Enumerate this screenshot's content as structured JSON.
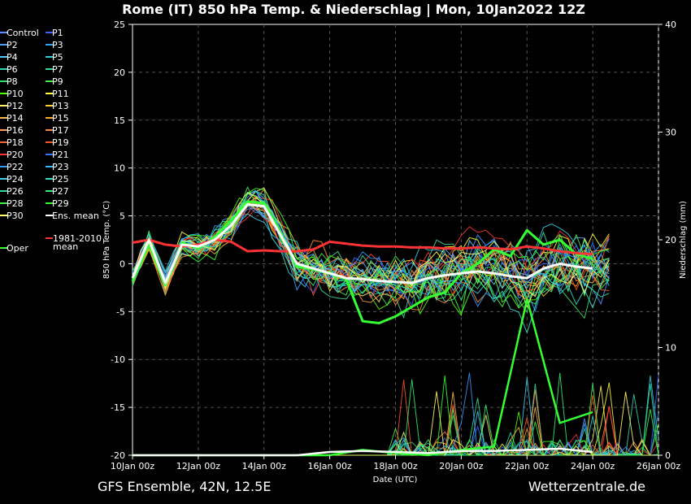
{
  "chart_data": {
    "type": "line",
    "title": "Rome  (IT)  850 hPa Temp. & Niederschlag | Mon, 10Jan2022 12Z",
    "xlabel": "Date (UTC)",
    "ylabel": "850 hPa Temp. (°C)",
    "y2label": "Niederschlag (mm)",
    "x_ticks": [
      "10Jan 00z",
      "12Jan 00z",
      "14Jan 00z",
      "16Jan 00z",
      "18Jan 00z",
      "20Jan 00z",
      "22Jan 00z",
      "24Jan 00z",
      "26Jan 00z"
    ],
    "x_range_hours": [
      0,
      384
    ],
    "ylim": [
      -20,
      25
    ],
    "y_ticks": [
      25,
      20,
      15,
      10,
      5,
      0,
      -5,
      -10,
      -15,
      -20
    ],
    "y2lim": [
      0,
      40
    ],
    "y2_ticks": [
      40,
      30,
      20,
      10,
      0
    ],
    "grid": true,
    "legend_position": "left",
    "legend_entries": [
      {
        "name": "Control",
        "color": "#4a90ff"
      },
      {
        "name": "P1",
        "color": "#3366ff"
      },
      {
        "name": "P2",
        "color": "#4aa0ff"
      },
      {
        "name": "P3",
        "color": "#33a0ff"
      },
      {
        "name": "P4",
        "color": "#55c8ff"
      },
      {
        "name": "P5",
        "color": "#33ccdd"
      },
      {
        "name": "P6",
        "color": "#33d4b0"
      },
      {
        "name": "P7",
        "color": "#33dd99"
      },
      {
        "name": "P8",
        "color": "#33dd66"
      },
      {
        "name": "P9",
        "color": "#44ee44"
      },
      {
        "name": "P10",
        "color": "#55ff00"
      },
      {
        "name": "P11",
        "color": "#ffff33"
      },
      {
        "name": "P12",
        "color": "#ffee66"
      },
      {
        "name": "P13",
        "color": "#ffcc33"
      },
      {
        "name": "P14",
        "color": "#ffbb44"
      },
      {
        "name": "P15",
        "color": "#ffaa22"
      },
      {
        "name": "P16",
        "color": "#ff9944"
      },
      {
        "name": "P17",
        "color": "#ff8833"
      },
      {
        "name": "P18",
        "color": "#ff6633"
      },
      {
        "name": "P19",
        "color": "#ff5522"
      },
      {
        "name": "P20",
        "color": "#ff3333"
      },
      {
        "name": "P21",
        "color": "#3377ff"
      },
      {
        "name": "P22",
        "color": "#3399ff"
      },
      {
        "name": "P23",
        "color": "#33bbff"
      },
      {
        "name": "P24",
        "color": "#44ccee"
      },
      {
        "name": "P25",
        "color": "#33ddcc"
      },
      {
        "name": "P26",
        "color": "#33dd99"
      },
      {
        "name": "P27",
        "color": "#33ee77"
      },
      {
        "name": "P28",
        "color": "#44ee55"
      },
      {
        "name": "P29",
        "color": "#33ff33"
      },
      {
        "name": "P30",
        "color": "#ffff66"
      },
      {
        "name": "Ens. mean",
        "color": "#ffffff"
      },
      {
        "name": "1981-2010 mean",
        "color": "#ff3333"
      },
      {
        "name": "Oper",
        "color": "#33ff33"
      }
    ],
    "series": [
      {
        "name": "Ens. mean",
        "color": "#ffffff",
        "x": [
          0,
          12,
          24,
          36,
          48,
          60,
          72,
          84,
          96,
          108,
          120,
          132,
          144,
          156,
          168,
          180,
          192,
          204,
          216,
          228,
          240,
          252,
          264,
          276,
          288,
          300,
          312,
          324,
          336,
          348,
          360,
          372,
          384
        ],
        "values": [
          -1.5,
          2.5,
          -2.0,
          2.0,
          1.8,
          2.5,
          4.0,
          6.2,
          6.0,
          3.0,
          0.0,
          -0.5,
          -1.0,
          -1.5,
          -1.6,
          -1.8,
          -1.9,
          -2.0,
          -1.5,
          -1.2,
          -1.0,
          -0.8,
          -1.0,
          -1.3,
          -1.5,
          -0.5,
          0.0,
          -0.3,
          -0.5,
          null,
          null,
          null,
          null
        ]
      },
      {
        "name": "1981-2010 mean",
        "color": "#ff3333",
        "x": [
          0,
          12,
          24,
          36,
          48,
          60,
          72,
          84,
          96,
          108,
          120,
          132,
          144,
          156,
          168,
          180,
          192,
          204,
          216,
          228,
          240,
          252,
          264,
          276,
          288,
          300,
          312,
          324,
          336,
          348,
          360,
          372,
          384
        ],
        "values": [
          2.2,
          2.5,
          2.0,
          1.8,
          2.0,
          2.5,
          2.3,
          1.3,
          1.4,
          1.3,
          1.3,
          1.5,
          2.3,
          2.1,
          1.9,
          1.8,
          1.8,
          1.7,
          1.7,
          1.6,
          1.6,
          1.7,
          1.6,
          1.5,
          1.8,
          1.6,
          1.3,
          1.1,
          1.0,
          null,
          null,
          null,
          null
        ]
      },
      {
        "name": "Oper",
        "color": "#33ff33",
        "x": [
          0,
          12,
          24,
          36,
          48,
          60,
          72,
          84,
          96,
          108,
          120,
          132,
          144,
          156,
          168,
          180,
          192,
          204,
          216,
          228,
          240,
          252,
          264,
          276,
          288,
          300,
          312,
          324,
          336,
          348,
          360,
          372,
          384
        ],
        "values": [
          -1.8,
          2.0,
          -2.2,
          2.2,
          1.6,
          2.8,
          4.5,
          6.5,
          6.3,
          3.2,
          -0.3,
          -0.6,
          -1.0,
          -1.6,
          -6.0,
          -6.2,
          -5.5,
          -4.5,
          -3.5,
          -3.0,
          -1.0,
          0.0,
          1.5,
          0.8,
          3.5,
          2.0,
          2.5,
          1.0,
          0.5,
          null,
          null,
          null,
          null
        ]
      }
    ],
    "precipitation_ens_mean_mm": {
      "x": [
        0,
        24,
        48,
        72,
        96,
        120,
        144,
        168,
        192,
        216,
        240,
        264,
        288,
        312,
        336
      ],
      "values": [
        0,
        0,
        0,
        0,
        0,
        0,
        0.3,
        0.4,
        0.3,
        0.2,
        0.4,
        0.4,
        0.5,
        0.6,
        0.3
      ]
    },
    "precipitation_oper_mm": {
      "x": [
        0,
        24,
        48,
        72,
        96,
        120,
        144,
        168,
        192,
        216,
        240,
        264,
        288,
        312,
        336
      ],
      "values": [
        0,
        0,
        0,
        0,
        0,
        0,
        0,
        0.5,
        0.2,
        0,
        0.5,
        0.8,
        14.5,
        3.0,
        4.0
      ]
    }
  },
  "footer": {
    "left": "GFS Ensemble, 42N, 12.5E",
    "right": "Wetterzentrale.de"
  }
}
